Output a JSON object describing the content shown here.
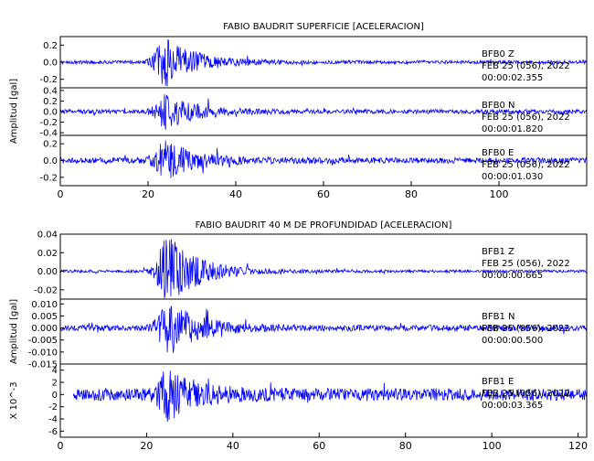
{
  "chart_data": [
    {
      "type": "line",
      "title": "FABIO BAUDRIT SUPERFICIE [ACELERACION]",
      "ylabel": "Amplitud [gal]",
      "xlabel": "",
      "xlim": [
        0,
        120
      ],
      "xticks": [
        "0",
        "20",
        "40",
        "60",
        "80",
        "100"
      ],
      "series_color": "#0000ff",
      "series": [
        {
          "name": "BFB0 Z",
          "station": "BFB0",
          "component": "Z",
          "date": "FEB 25 (056), 2022",
          "time": "00:00:02.355",
          "ylim": [
            -0.3,
            0.3
          ],
          "yticks": [
            "0.2",
            "0.0",
            "-0.2"
          ],
          "signal": {
            "t_start": 0,
            "t_end": 120,
            "event_t": 24,
            "noise": 0.02,
            "peak": 0.3
          }
        },
        {
          "name": "BFB0 N",
          "station": "BFB0",
          "component": "N",
          "date": "FEB 25 (056), 2022",
          "time": "00:00:01.820",
          "ylim": [
            -0.45,
            0.45
          ],
          "yticks": [
            "0.4",
            "0.2",
            "0.0",
            "-0.2",
            "-0.4"
          ],
          "signal": {
            "t_start": 0,
            "t_end": 120,
            "event_t": 24,
            "noise": 0.04,
            "peak": 0.35
          }
        },
        {
          "name": "BFB0 E",
          "station": "BFB0",
          "component": "E",
          "date": "FEB 25 (056), 2022",
          "time": "00:00:01.030",
          "ylim": [
            -0.3,
            0.3
          ],
          "yticks": [
            "0.2",
            "0.0",
            "-0.2"
          ],
          "signal": {
            "t_start": 0,
            "t_end": 120,
            "event_t": 24,
            "noise": 0.035,
            "peak": 0.25
          }
        }
      ]
    },
    {
      "type": "line",
      "title": "FABIO BAUDRIT 40 M DE PROFUNDIDAD [ACELERACION]",
      "ylabel": "Amplitud [gal]",
      "ylabel_bottom": "X 10^-3",
      "xlabel": "",
      "xlim": [
        0,
        122
      ],
      "xticks": [
        "0",
        "20",
        "40",
        "60",
        "80",
        "100",
        "120"
      ],
      "series_color": "#0000ff",
      "series": [
        {
          "name": "BFB1 Z",
          "station": "BFB1",
          "component": "Z",
          "date": "FEB 25 (056), 2022",
          "time": "00:00:00.665",
          "ylim": [
            -0.03,
            0.04
          ],
          "yticks": [
            "0.04",
            "0.02",
            "0.00",
            "-0.02"
          ],
          "signal": {
            "t_start": 0,
            "t_end": 122,
            "event_t": 25,
            "noise": 0.0015,
            "peak": 0.04
          }
        },
        {
          "name": "BFB1 N",
          "station": "BFB1",
          "component": "N",
          "date": "FEB 25 (056), 2022",
          "time": "00:00:00.500",
          "ylim": [
            -0.015,
            0.012
          ],
          "yticks": [
            "0.010",
            "0.005",
            "0.000",
            "-0.005",
            "-0.010",
            "-0.015"
          ],
          "signal": {
            "t_start": 0,
            "t_end": 122,
            "event_t": 25,
            "noise": 0.0012,
            "peak": 0.012
          }
        },
        {
          "name": "BFB1 E",
          "station": "BFB1",
          "component": "E",
          "date": "FEB 25 (056), 2022",
          "time": "00:00:03.365",
          "ylim": [
            -7,
            5
          ],
          "yticks": [
            "4",
            "2",
            "0",
            "-2",
            "-4",
            "-6"
          ],
          "signal": {
            "t_start": 3,
            "t_end": 122,
            "event_t": 25,
            "noise": 1.0,
            "peak": 4.5
          }
        }
      ]
    }
  ]
}
